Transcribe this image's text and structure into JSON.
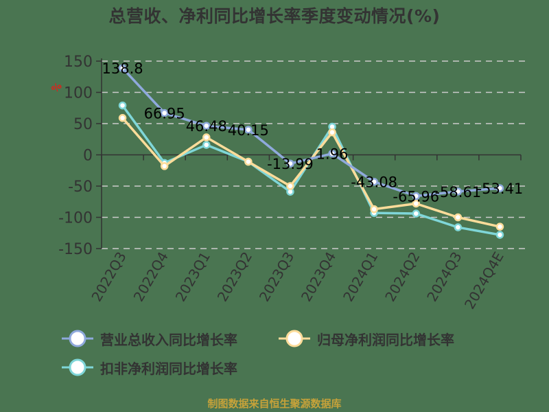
{
  "chart_data": {
    "type": "line",
    "title": "总营收、净利同比增长率季度变动情况(%)",
    "xlabel": "",
    "ylabel": "%",
    "ylim": [
      -150,
      150
    ],
    "yticks": [
      150,
      100,
      50,
      0,
      -50,
      -100,
      -150
    ],
    "grid": true,
    "legend_position": "bottom",
    "categories": [
      "2022Q3",
      "2022Q4",
      "2023Q1",
      "2023Q2",
      "2023Q3",
      "2023Q4",
      "2024Q1",
      "2024Q2",
      "2024Q3",
      "2024Q4E"
    ],
    "series": [
      {
        "name": "营业总收入同比增长率",
        "color": "#8fa9dc",
        "values": [
          138.8,
          66.95,
          46.48,
          40.15,
          -13.99,
          1.96,
          -43.08,
          -65.96,
          -58.61,
          -53.41
        ],
        "labels": [
          "138.8",
          "66.95",
          "46.48",
          "40.15",
          "-13.99",
          "1.96",
          "-43.08",
          "-65.96",
          "-58.61",
          "-53.41"
        ]
      },
      {
        "name": "归母净利润同比增长率",
        "color": "#fddc9a",
        "values": [
          59,
          -18,
          28,
          -11,
          -50,
          36,
          -87,
          -78,
          -100,
          -115
        ]
      },
      {
        "name": "扣非净利润同比增长率",
        "color": "#7fd6d8",
        "values": [
          79,
          -13,
          16,
          -11,
          -59,
          45,
          -93,
          -94,
          -116,
          -128
        ]
      }
    ]
  },
  "source_note": "制图数据来自恒生聚源数据库"
}
